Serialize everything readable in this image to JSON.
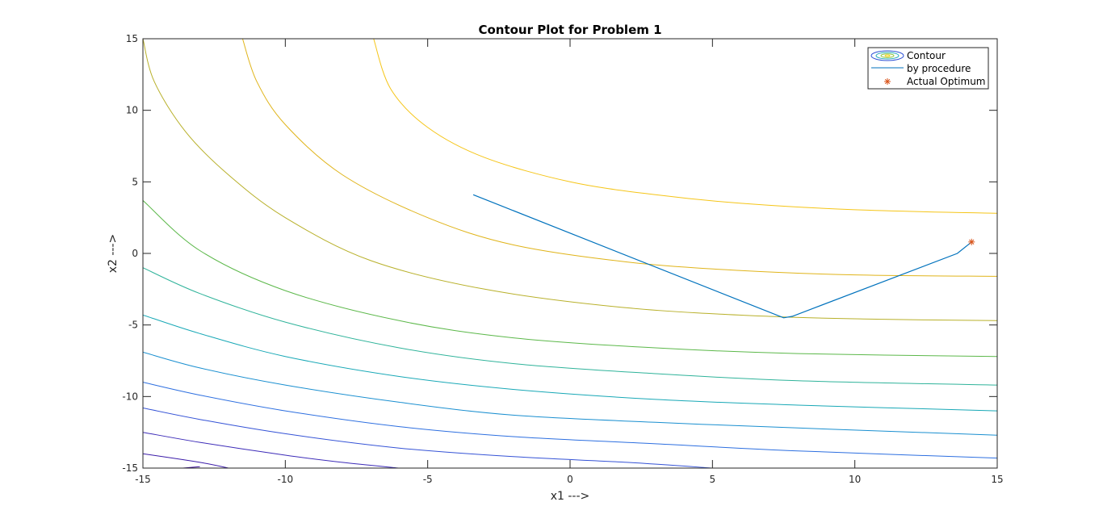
{
  "chart_data": {
    "type": "contour",
    "title": "Contour Plot for Problem 1",
    "xlabel": "x1 --->",
    "ylabel": "x2 --->",
    "xlim": [
      -15,
      15
    ],
    "ylim": [
      -15,
      15
    ],
    "xticks": [
      "-15",
      "-10",
      "-5",
      "0",
      "5",
      "10",
      "15"
    ],
    "yticks": [
      "-15",
      "-10",
      "-5",
      "0",
      "5",
      "10",
      "15"
    ],
    "grid": false,
    "legend_placement": "top-right",
    "legend": [
      {
        "label": "Contour",
        "kind": "contour"
      },
      {
        "label": "by procedure",
        "kind": "line",
        "color": "#0072bd"
      },
      {
        "label": "Actual Optimum",
        "kind": "marker",
        "color": "#d95319"
      }
    ],
    "contour_levels": [
      {
        "color": "#f5c518",
        "points": [
          [
            -6.9,
            15
          ],
          [
            -6.3,
            11.5
          ],
          [
            -5,
            8.8
          ],
          [
            -3,
            6.7
          ],
          [
            0,
            5
          ],
          [
            3,
            4.1
          ],
          [
            6,
            3.5
          ],
          [
            10,
            3.05
          ],
          [
            15,
            2.8
          ]
        ]
      },
      {
        "color": "#e0b41a",
        "points": [
          [
            -11.5,
            15
          ],
          [
            -11,
            12
          ],
          [
            -10,
            9
          ],
          [
            -8,
            5.5
          ],
          [
            -5,
            2.5
          ],
          [
            -2,
            0.6
          ],
          [
            2,
            -0.6
          ],
          [
            6,
            -1.2
          ],
          [
            10,
            -1.5
          ],
          [
            15,
            -1.6
          ]
        ]
      },
      {
        "color": "#b8b02a",
        "points": [
          [
            -15,
            15
          ],
          [
            -14.6,
            12
          ],
          [
            -13.5,
            8.5
          ],
          [
            -12,
            5.5
          ],
          [
            -10,
            2.5
          ],
          [
            -7,
            -0.5
          ],
          [
            -3,
            -2.5
          ],
          [
            2,
            -3.8
          ],
          [
            7,
            -4.4
          ],
          [
            11,
            -4.6
          ],
          [
            15,
            -4.7
          ]
        ]
      },
      {
        "color": "#5cb84a",
        "points": [
          [
            -15,
            3.7
          ],
          [
            -13,
            0.2
          ],
          [
            -10,
            -2.6
          ],
          [
            -6,
            -4.7
          ],
          [
            -2,
            -5.9
          ],
          [
            3,
            -6.6
          ],
          [
            8,
            -7
          ],
          [
            15,
            -7.2
          ]
        ]
      },
      {
        "color": "#2fb39a",
        "points": [
          [
            -15,
            -1
          ],
          [
            -13,
            -2.8
          ],
          [
            -10,
            -4.8
          ],
          [
            -6,
            -6.6
          ],
          [
            -2,
            -7.7
          ],
          [
            3,
            -8.4
          ],
          [
            8,
            -8.9
          ],
          [
            15,
            -9.2
          ]
        ]
      },
      {
        "color": "#18a8b6",
        "points": [
          [
            -15,
            -4.3
          ],
          [
            -13,
            -5.6
          ],
          [
            -10,
            -7.2
          ],
          [
            -6,
            -8.6
          ],
          [
            -2,
            -9.5
          ],
          [
            3,
            -10.2
          ],
          [
            8,
            -10.6
          ],
          [
            15,
            -11
          ]
        ]
      },
      {
        "color": "#1a8fd0",
        "points": [
          [
            -15,
            -6.9
          ],
          [
            -13,
            -8
          ],
          [
            -10,
            -9.2
          ],
          [
            -6,
            -10.4
          ],
          [
            -2,
            -11.3
          ],
          [
            3,
            -11.8
          ],
          [
            8,
            -12.2
          ],
          [
            15,
            -12.7
          ]
        ]
      },
      {
        "color": "#2d6fe0",
        "points": [
          [
            -15,
            -9
          ],
          [
            -13,
            -9.9
          ],
          [
            -10,
            -11
          ],
          [
            -6,
            -12.1
          ],
          [
            -2,
            -12.8
          ],
          [
            3,
            -13.3
          ],
          [
            8,
            -13.8
          ],
          [
            15,
            -14.3
          ]
        ]
      },
      {
        "color": "#3553d6",
        "points": [
          [
            -15,
            -10.8
          ],
          [
            -13,
            -11.6
          ],
          [
            -10,
            -12.6
          ],
          [
            -6,
            -13.6
          ],
          [
            -2,
            -14.2
          ],
          [
            2,
            -14.6
          ],
          [
            5,
            -15
          ]
        ]
      },
      {
        "color": "#3d2cb8",
        "points": [
          [
            -15,
            -12.5
          ],
          [
            -13,
            -13.2
          ],
          [
            -10,
            -14.1
          ],
          [
            -8,
            -14.6
          ],
          [
            -6,
            -15
          ]
        ]
      },
      {
        "color": "#3a1aa8",
        "points": [
          [
            -15,
            -14
          ],
          [
            -13,
            -14.6
          ],
          [
            -12,
            -15
          ]
        ]
      },
      {
        "color": "#3e0f9a",
        "points": [
          [
            -13.6,
            -15
          ],
          [
            -13,
            -14.9
          ]
        ]
      }
    ],
    "series": [
      {
        "name": "by procedure",
        "color": "#0072bd",
        "x": [
          -3.4,
          7.5,
          7.8,
          13.6,
          14.1
        ],
        "y": [
          4.1,
          -4.5,
          -4.4,
          0.0,
          0.8
        ]
      }
    ],
    "optimum": {
      "name": "Actual Optimum",
      "color": "#d95319",
      "x": 14.1,
      "y": 0.8
    }
  }
}
